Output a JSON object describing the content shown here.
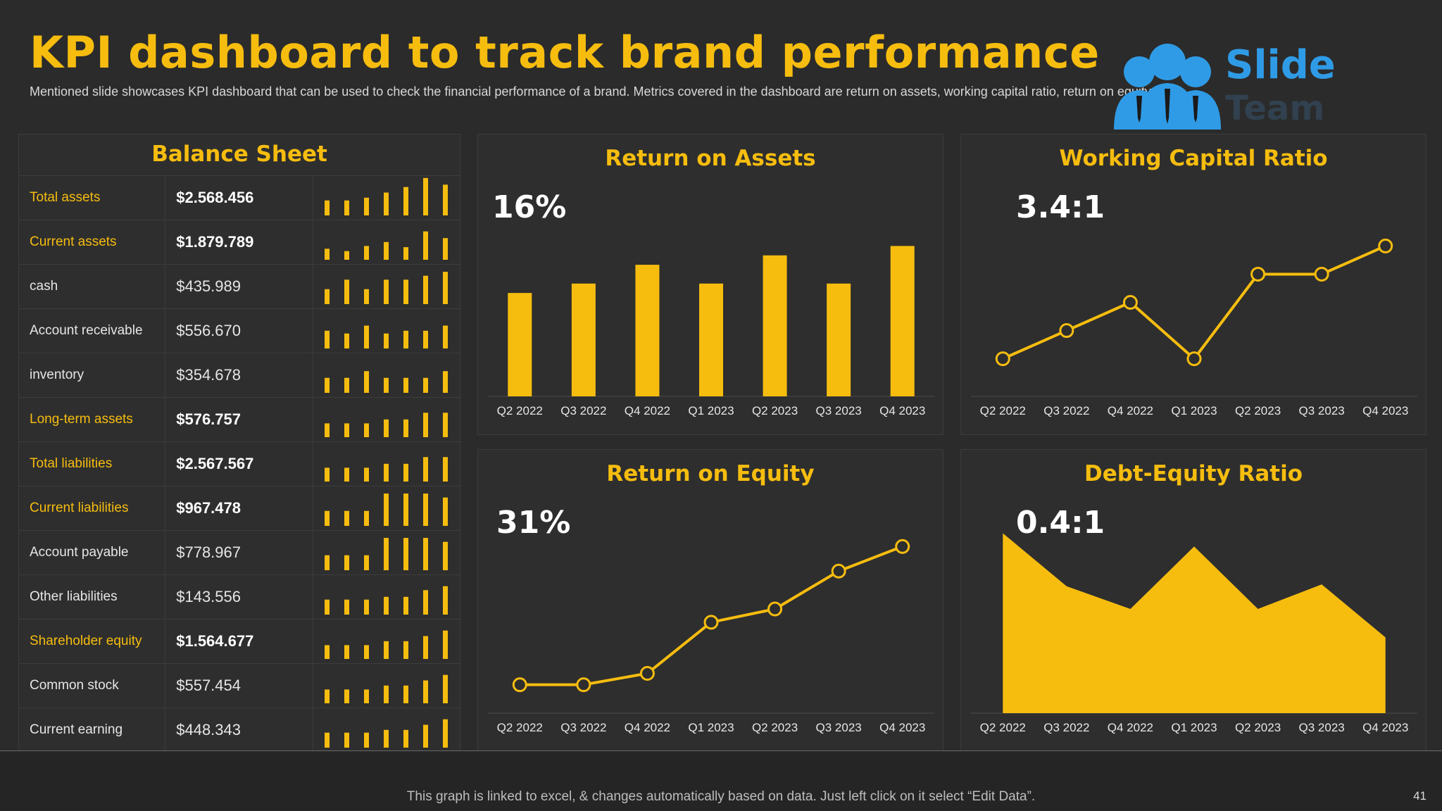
{
  "header": {
    "title": "KPI dashboard to track brand performance",
    "subtitle": "Mentioned slide showcases KPI dashboard that can be used to check the financial performance of a brand. Metrics covered in the dashboard are return on assets, working capital ratio, return on equity etc."
  },
  "logo": {
    "text": "Slide",
    "text2": "Team",
    "icon": "people-group-icon",
    "color": "#2f9be6"
  },
  "colors": {
    "accent": "#f6bd0f",
    "background": "#2b2b2b",
    "panel": "#2e2e2e",
    "grid": "#3c3c3c"
  },
  "balance_sheet": {
    "title": "Balance Sheet",
    "rows": [
      {
        "label": "Total assets",
        "value": "$2.568.456",
        "highlight": true
      },
      {
        "label": "Current assets",
        "value": "$1.879.789",
        "highlight": true
      },
      {
        "label": "cash",
        "value": "$435.989",
        "highlight": false
      },
      {
        "label": "Account receivable",
        "value": "$556.670",
        "highlight": false
      },
      {
        "label": "inventory",
        "value": "$354.678",
        "highlight": false
      },
      {
        "label": "Long-term assets",
        "value": "$576.757",
        "highlight": true
      },
      {
        "label": "Total liabilities",
        "value": "$2.567.567",
        "highlight": true
      },
      {
        "label": "Current liabilities",
        "value": "$967.478",
        "highlight": true
      },
      {
        "label": "Account payable",
        "value": "$778.967",
        "highlight": false
      },
      {
        "label": "Other liabilities",
        "value": "$143.556",
        "highlight": false
      },
      {
        "label": "Shareholder equity",
        "value": "$1.564.677",
        "highlight": true
      },
      {
        "label": "Common stock",
        "value": "$557.454",
        "highlight": false
      },
      {
        "label": "Current earning",
        "value": "$448.343",
        "highlight": false
      }
    ],
    "sparklines": [
      [
        0.38,
        0.38,
        0.45,
        0.58,
        0.72,
        0.95,
        0.78
      ],
      [
        0.28,
        0.22,
        0.35,
        0.45,
        0.32,
        0.72,
        0.55
      ],
      [
        0.38,
        0.62,
        0.38,
        0.62,
        0.62,
        0.72,
        0.82
      ],
      [
        0.45,
        0.38,
        0.58,
        0.38,
        0.45,
        0.45,
        0.58
      ],
      [
        0.38,
        0.38,
        0.55,
        0.38,
        0.38,
        0.38,
        0.55
      ],
      [
        0.35,
        0.35,
        0.35,
        0.45,
        0.45,
        0.62,
        0.62
      ],
      [
        0.35,
        0.35,
        0.35,
        0.45,
        0.45,
        0.62,
        0.62
      ],
      [
        0.38,
        0.38,
        0.38,
        0.82,
        0.82,
        0.82,
        0.72
      ],
      [
        0.38,
        0.38,
        0.38,
        0.82,
        0.82,
        0.82,
        0.72
      ],
      [
        0.38,
        0.38,
        0.38,
        0.45,
        0.45,
        0.62,
        0.72
      ],
      [
        0.35,
        0.35,
        0.35,
        0.45,
        0.45,
        0.58,
        0.72
      ],
      [
        0.35,
        0.35,
        0.35,
        0.45,
        0.45,
        0.58,
        0.72
      ],
      [
        0.38,
        0.38,
        0.38,
        0.45,
        0.45,
        0.58,
        0.72
      ]
    ]
  },
  "kpis": {
    "roa": {
      "title": "Return on Assets",
      "value": "16%"
    },
    "wcr": {
      "title": "Working Capital Ratio",
      "value": "3.4:1"
    },
    "roe": {
      "title": "Return on Equity",
      "value": "31%"
    },
    "der": {
      "title": "Debt-Equity Ratio",
      "value": "0.4:1"
    }
  },
  "chart_data": [
    {
      "id": "roa",
      "type": "bar",
      "title": "Return on Assets",
      "categories": [
        "Q2 2022",
        "Q3 2022",
        "Q4 2022",
        "Q1 2023",
        "Q2 2023",
        "Q3 2023",
        "Q4 2023"
      ],
      "values": [
        55,
        60,
        70,
        60,
        75,
        60,
        80
      ],
      "ylim": [
        0,
        100
      ],
      "grid": false
    },
    {
      "id": "wcr",
      "type": "line",
      "title": "Working Capital Ratio",
      "categories": [
        "Q2 2022",
        "Q3 2022",
        "Q4 2022",
        "Q1 2023",
        "Q2 2023",
        "Q3 2023",
        "Q4 2023"
      ],
      "values": [
        20,
        35,
        50,
        20,
        65,
        65,
        80
      ],
      "ylim": [
        0,
        100
      ],
      "grid": false
    },
    {
      "id": "roe",
      "type": "line",
      "title": "Return on Equity",
      "categories": [
        "Q2 2022",
        "Q3 2022",
        "Q4 2022",
        "Q1 2023",
        "Q2 2023",
        "Q3 2023",
        "Q4 2023"
      ],
      "values": [
        15,
        15,
        21,
        48,
        55,
        75,
        88
      ],
      "ylim": [
        0,
        100
      ],
      "grid": false
    },
    {
      "id": "der",
      "type": "area",
      "title": "Debt-Equity Ratio",
      "categories": [
        "Q2 2022",
        "Q3 2022",
        "Q4 2022",
        "Q1 2023",
        "Q2 2023",
        "Q3 2023",
        "Q4 2023"
      ],
      "values": [
        95,
        67,
        55,
        88,
        55,
        68,
        40
      ],
      "ylim": [
        0,
        100
      ],
      "grid": false
    }
  ],
  "footer": {
    "text": "This graph is linked to excel, & changes automatically based on data. Just left click on it select “Edit Data”.",
    "page": "41"
  }
}
